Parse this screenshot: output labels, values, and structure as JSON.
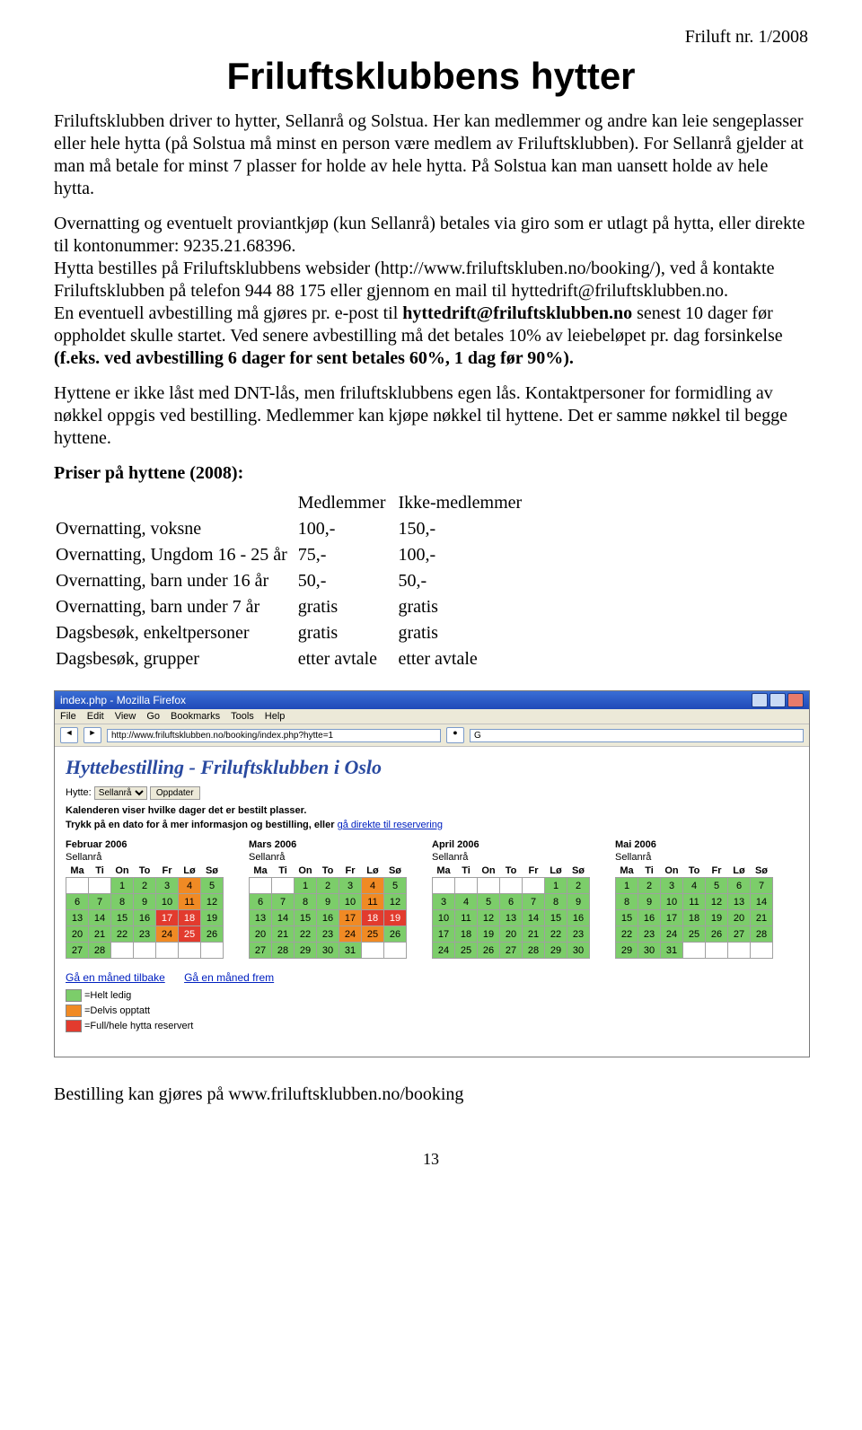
{
  "issue": "Friluft nr. 1/2008",
  "title": "Friluftsklubbens hytter",
  "p1": "Friluftsklubben driver to hytter, Sellanrå og Solstua. Her kan medlemmer og andre kan leie sengeplasser eller hele hytta (på Solstua må minst en person være medlem av Friluftsklubben). For Sellanrå gjelder at man må betale for minst 7 plasser for holde av hele hytta. På Solstua kan man uansett holde av hele hytta.",
  "p2a": "Overnatting og eventuelt proviantkjøp (kun Sellanrå) betales via giro som er utlagt på hytta, eller direkte til kontonummer: 9235.21.68396.",
  "p2b": "Hytta bestilles på Friluftsklubbens websider (http://www.friluftskluben.no/booking/), ved  å kontakte Friluftsklubben på telefon 944 88 175 eller gjennom en mail til hyttedrift@friluftsklubben.no.",
  "p2c_pre": "En eventuell avbestilling må gjøres pr. e-post til ",
  "p2c_bold1": "hyttedrift@friluftsklubben.no",
  "p2c_mid": " senest 10 dager før oppholdet skulle startet. Ved senere avbestilling må det betales 10% av leiebeløpet pr. dag forsinkelse ",
  "p2c_bold2": "(f.eks. ved avbestilling 6 dager for sent betales 60%, 1 dag før 90%).",
  "p3": "Hyttene er ikke låst med DNT-lås, men friluftsklubbens egen lås. Kontaktpersoner for formidling av nøkkel oppgis ved bestilling. Medlemmer kan kjøpe nøkkel til hyttene. Det er samme nøkkel til begge hyttene.",
  "prices_title": "Priser på hyttene (2008):",
  "col1": "Medlemmer",
  "col2": "Ikke-medlemmer",
  "rows": [
    {
      "label": "Overnatting, voksne",
      "m": "100,-",
      "n": "150,-"
    },
    {
      "label": "Overnatting, Ungdom 16 - 25 år",
      "m": "75,-",
      "n": "100,-"
    },
    {
      "label": "Overnatting, barn under 16 år",
      "m": "50,-",
      "n": "50,-"
    },
    {
      "label": "Overnatting, barn under 7 år",
      "m": "gratis",
      "n": "gratis"
    },
    {
      "label": "Dagsbesøk, enkeltpersoner",
      "m": "gratis",
      "n": "gratis"
    },
    {
      "label": "Dagsbesøk, grupper",
      "m": "etter avtale",
      "n": "etter avtale"
    }
  ],
  "browser": {
    "title": "index.php - Mozilla Firefox",
    "menu": [
      "File",
      "Edit",
      "View",
      "Go",
      "Bookmarks",
      "Tools",
      "Help"
    ],
    "url": "http://www.friluftsklubben.no/booking/index.php?hytte=1",
    "search": "G",
    "heading": "Hyttebestilling - Friluftsklubben i Oslo",
    "hytte_label": "Hytte:",
    "hytte_value": "Sellanrå",
    "update": "Oppdater",
    "hint1": "Kalenderen viser hvilke dager det er bestilt plasser.",
    "hint2_a": "Trykk på en dato for å mer informasjon og bestilling, eller ",
    "hint2_link": "gå direkte til reservering",
    "calendars": [
      {
        "month": "Februar 2006",
        "cabin": "Sellanrå",
        "cells": [
          [
            "e",
            "e",
            "g",
            "g",
            "g",
            "o",
            "g"
          ],
          [
            "g",
            "g",
            "g",
            "g",
            "g",
            "o",
            "g"
          ],
          [
            "g",
            "g",
            "g",
            "g",
            "r",
            "r",
            "g"
          ],
          [
            "g",
            "g",
            "g",
            "g",
            "o",
            "r",
            "g"
          ],
          [
            "g",
            "g",
            "e",
            "e",
            "e",
            "e",
            "e"
          ]
        ],
        "nums": [
          [
            "",
            "",
            "1",
            "2",
            "3",
            "4",
            "5"
          ],
          [
            "6",
            "7",
            "8",
            "9",
            "10",
            "11",
            "12"
          ],
          [
            "13",
            "14",
            "15",
            "16",
            "17",
            "18",
            "19"
          ],
          [
            "20",
            "21",
            "22",
            "23",
            "24",
            "25",
            "26"
          ],
          [
            "27",
            "28",
            "",
            "",
            "",
            "",
            ""
          ]
        ]
      },
      {
        "month": "Mars 2006",
        "cabin": "Sellanrå",
        "cells": [
          [
            "e",
            "e",
            "g",
            "g",
            "g",
            "o",
            "g"
          ],
          [
            "g",
            "g",
            "g",
            "g",
            "g",
            "o",
            "g"
          ],
          [
            "g",
            "g",
            "g",
            "g",
            "o",
            "r",
            "r"
          ],
          [
            "g",
            "g",
            "g",
            "g",
            "o",
            "o",
            "g"
          ],
          [
            "g",
            "g",
            "g",
            "g",
            "g",
            "e",
            "e"
          ]
        ],
        "nums": [
          [
            "",
            "",
            "1",
            "2",
            "3",
            "4",
            "5"
          ],
          [
            "6",
            "7",
            "8",
            "9",
            "10",
            "11",
            "12"
          ],
          [
            "13",
            "14",
            "15",
            "16",
            "17",
            "18",
            "19"
          ],
          [
            "20",
            "21",
            "22",
            "23",
            "24",
            "25",
            "26"
          ],
          [
            "27",
            "28",
            "29",
            "30",
            "31",
            "",
            ""
          ]
        ]
      },
      {
        "month": "April 2006",
        "cabin": "Sellanrå",
        "cells": [
          [
            "e",
            "e",
            "e",
            "e",
            "e",
            "g",
            "g"
          ],
          [
            "g",
            "g",
            "g",
            "g",
            "g",
            "g",
            "g"
          ],
          [
            "g",
            "g",
            "g",
            "g",
            "g",
            "g",
            "g"
          ],
          [
            "g",
            "g",
            "g",
            "g",
            "g",
            "g",
            "g"
          ],
          [
            "g",
            "g",
            "g",
            "g",
            "g",
            "g",
            "g"
          ]
        ],
        "nums": [
          [
            "",
            "",
            "",
            "",
            "",
            "1",
            "2"
          ],
          [
            "3",
            "4",
            "5",
            "6",
            "7",
            "8",
            "9"
          ],
          [
            "10",
            "11",
            "12",
            "13",
            "14",
            "15",
            "16"
          ],
          [
            "17",
            "18",
            "19",
            "20",
            "21",
            "22",
            "23"
          ],
          [
            "24",
            "25",
            "26",
            "27",
            "28",
            "29",
            "30"
          ]
        ]
      },
      {
        "month": "Mai 2006",
        "cabin": "Sellanrå",
        "cells": [
          [
            "g",
            "g",
            "g",
            "g",
            "g",
            "g",
            "g"
          ],
          [
            "g",
            "g",
            "g",
            "g",
            "g",
            "g",
            "g"
          ],
          [
            "g",
            "g",
            "g",
            "g",
            "g",
            "g",
            "g"
          ],
          [
            "g",
            "g",
            "g",
            "g",
            "g",
            "g",
            "g"
          ],
          [
            "g",
            "g",
            "g",
            "e",
            "e",
            "e",
            "e"
          ]
        ],
        "nums": [
          [
            "1",
            "2",
            "3",
            "4",
            "5",
            "6",
            "7"
          ],
          [
            "8",
            "9",
            "10",
            "11",
            "12",
            "13",
            "14"
          ],
          [
            "15",
            "16",
            "17",
            "18",
            "19",
            "20",
            "21"
          ],
          [
            "22",
            "23",
            "24",
            "25",
            "26",
            "27",
            "28"
          ],
          [
            "29",
            "30",
            "31",
            "",
            "",
            "",
            ""
          ]
        ]
      }
    ],
    "days": [
      "Ma",
      "Ti",
      "On",
      "To",
      "Fr",
      "Lø",
      "Sø"
    ],
    "back": "Gå en måned tilbake",
    "fwd": "Gå en måned frem",
    "legend": [
      {
        "cls": "g",
        "txt": "=Helt ledig"
      },
      {
        "cls": "o",
        "txt": "=Delvis opptatt"
      },
      {
        "cls": "r",
        "txt": "=Full/hele hytta reservert"
      }
    ]
  },
  "footer": "Bestilling kan gjøres på www.friluftsklubben.no/booking",
  "pagenum": "13",
  "colors": {
    "green": "#7ccd6a",
    "orange": "#f08a24",
    "red": "#e23b2e"
  }
}
